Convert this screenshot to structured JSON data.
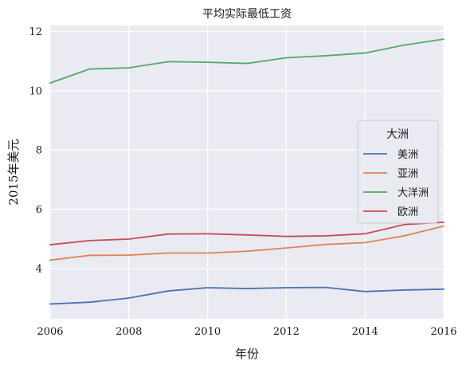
{
  "chart_data": {
    "type": "line",
    "title": "平均实际最低工资",
    "xlabel": "年份",
    "ylabel": "2015年美元",
    "x": [
      2006,
      2007,
      2008,
      2009,
      2010,
      2011,
      2012,
      2013,
      2014,
      2015,
      2016
    ],
    "xlim": [
      2006,
      2016
    ],
    "ylim": [
      2.3,
      12.2
    ],
    "xticks": [
      2006,
      2008,
      2010,
      2012,
      2014,
      2016
    ],
    "yticks": [
      4,
      6,
      8,
      10,
      12
    ],
    "grid": true,
    "background": "#eaeaf2",
    "legend": {
      "title": "大洲",
      "placement": "center-right"
    },
    "series": [
      {
        "name": "美洲",
        "color": "#4c72b0",
        "values": [
          2.8,
          2.86,
          3.0,
          3.24,
          3.35,
          3.32,
          3.35,
          3.36,
          3.22,
          3.27,
          3.3
        ]
      },
      {
        "name": "亚洲",
        "color": "#dd8452",
        "values": [
          4.28,
          4.44,
          4.45,
          4.52,
          4.52,
          4.58,
          4.69,
          4.81,
          4.87,
          5.1,
          5.43
        ]
      },
      {
        "name": "大洋洲",
        "color": "#55a868",
        "values": [
          10.26,
          10.73,
          10.77,
          10.98,
          10.96,
          10.92,
          11.11,
          11.18,
          11.27,
          11.54,
          11.74
        ]
      },
      {
        "name": "欧洲",
        "color": "#c44e52",
        "values": [
          4.8,
          4.94,
          4.99,
          5.16,
          5.17,
          5.13,
          5.08,
          5.1,
          5.17,
          5.48,
          5.56
        ]
      }
    ]
  }
}
